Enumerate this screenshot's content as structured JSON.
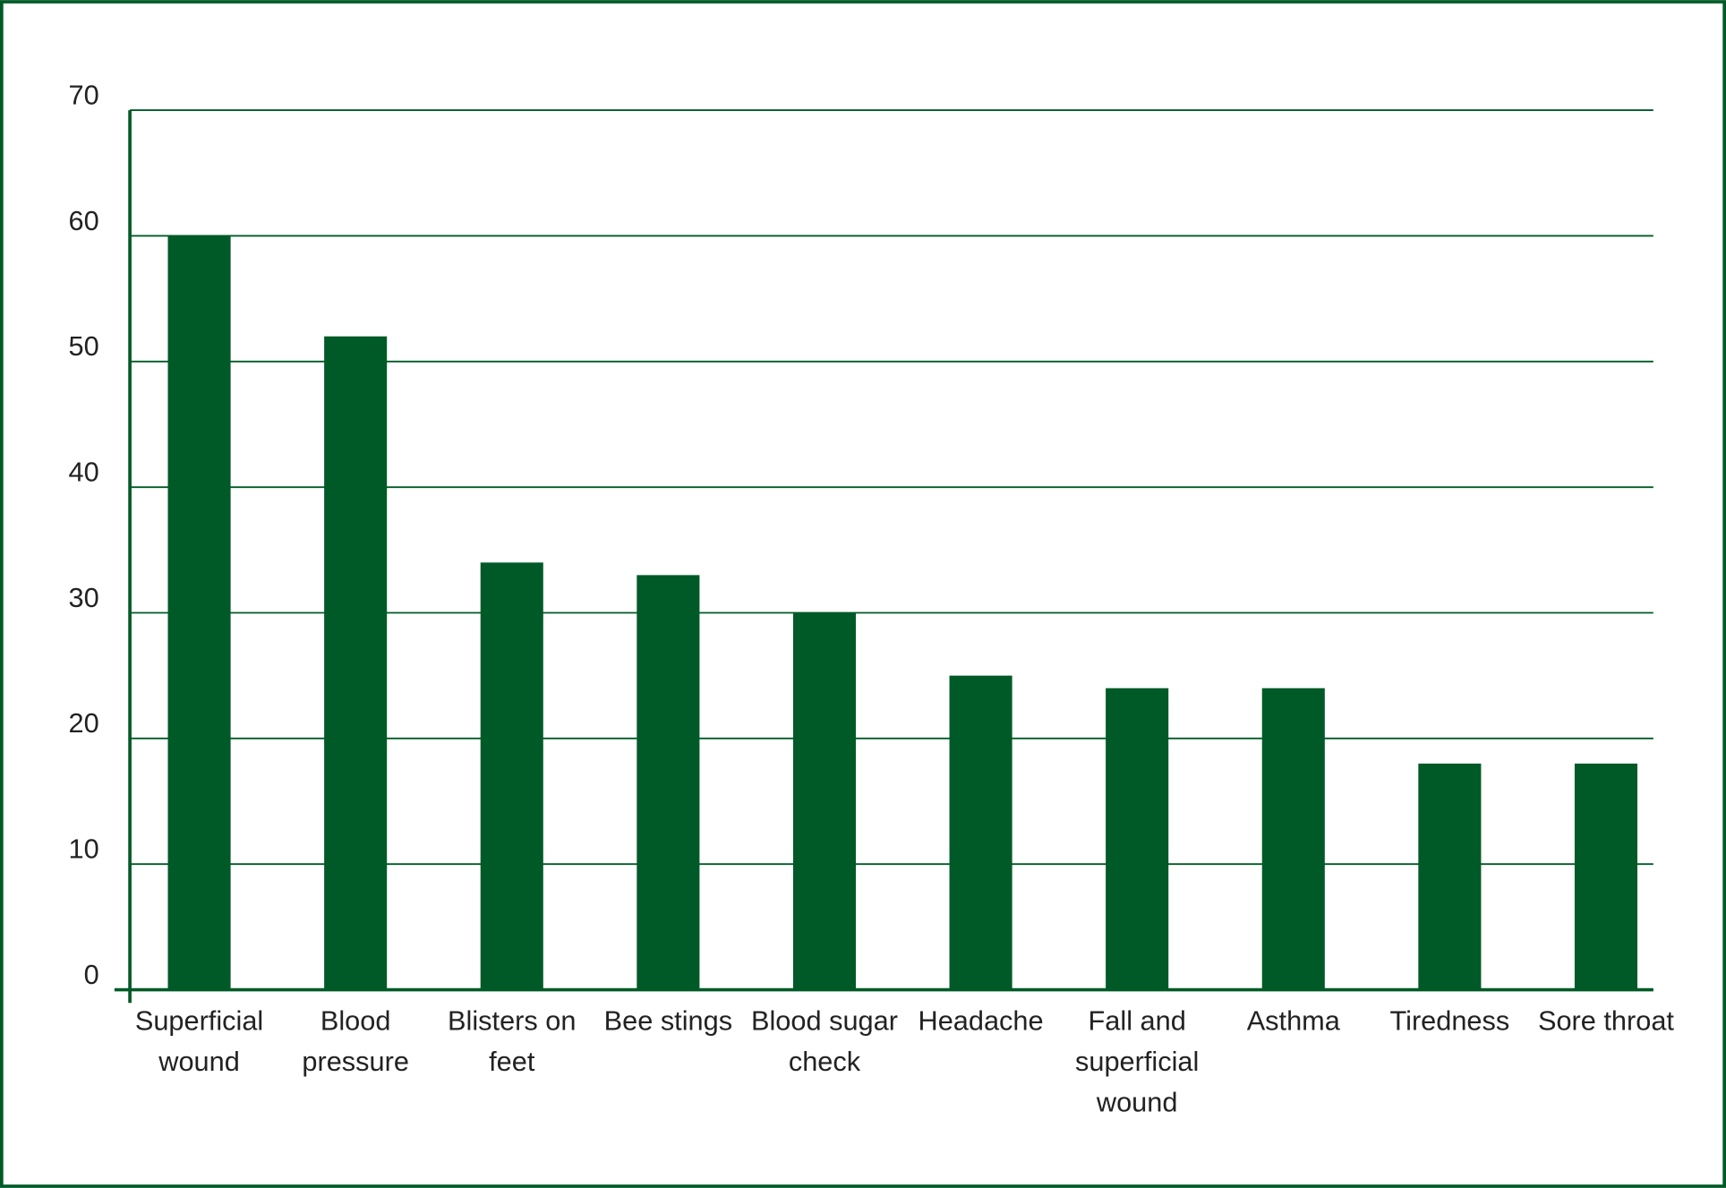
{
  "chart_data": {
    "type": "bar",
    "categories": [
      "Superficial wound",
      "Blood pressure",
      "Blisters on feet",
      "Bee stings",
      "Blood sugar check",
      "Headache",
      "Fall and superficial wound",
      "Asthma",
      "Tiredness",
      "Sore throat"
    ],
    "values": [
      60,
      52,
      34,
      33,
      30,
      25,
      24,
      24,
      18,
      18
    ],
    "color": "#005a27",
    "ylim": [
      0,
      70
    ],
    "yticks": [
      0,
      10,
      20,
      30,
      40,
      50,
      60,
      70
    ],
    "grid": true
  }
}
